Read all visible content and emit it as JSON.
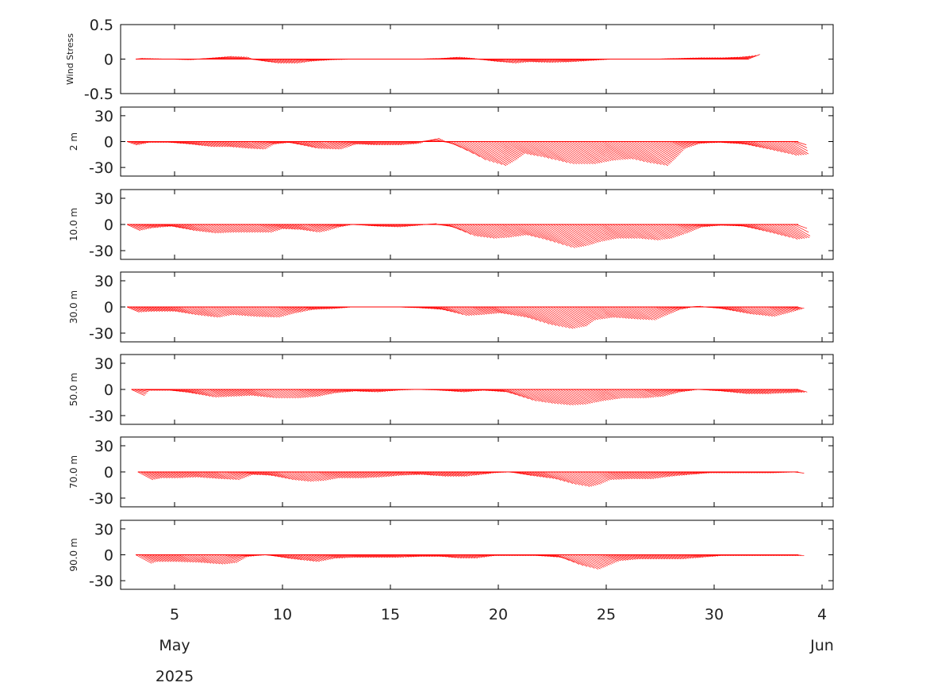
{
  "chart_data": {
    "type": "line",
    "description_style": "stick vector plots",
    "line_color": "#ff0000",
    "x_axis": {
      "ticks": [
        "5",
        "10",
        "15",
        "20",
        "25",
        "30",
        "4"
      ],
      "month_labels": [
        "May",
        "Jun"
      ],
      "year_label": "2025",
      "xlim": [
        "2025-05-02.5",
        "2025-06-04.5"
      ]
    },
    "panels": [
      {
        "ylabel": "Wind Stress",
        "ylim": [
          -0.5,
          0.5
        ],
        "yticks": [
          "0.5",
          "0",
          "-0.5"
        ],
        "series": [
          {
            "x": [
              3.2,
              4.5,
              5.5,
              6.5,
              7.2,
              8.0,
              8.6,
              9.3,
              10.2,
              11.0,
              12.0,
              13.0,
              14.0,
              15.0,
              16.0,
              17.0,
              17.8,
              18.6,
              19.4,
              20.3,
              21.0,
              22.0,
              23.0,
              24.0,
              25.0,
              26.0,
              27.0,
              28.0,
              29.0,
              30.0,
              30.8,
              31.4,
              31.6
            ],
            "y": [
              0.01,
              0.0,
              -0.01,
              0.02,
              0.04,
              0.03,
              -0.02,
              -0.06,
              -0.06,
              -0.03,
              -0.01,
              0.0,
              0.0,
              0.0,
              0.0,
              0.01,
              0.03,
              0.01,
              -0.03,
              -0.06,
              -0.04,
              -0.05,
              -0.04,
              -0.02,
              0.0,
              0.0,
              0.0,
              0.01,
              0.02,
              0.02,
              0.03,
              0.05,
              0.07
            ]
          }
        ]
      },
      {
        "ylabel": "2 m",
        "ylim": [
          -40,
          40
        ],
        "yticks": [
          "30",
          "0",
          "-30"
        ],
        "series": [
          {
            "x": [
              2.8,
              3.5,
              4.5,
              5.3,
              6.2,
              7.0,
              7.8,
              8.5,
              9.2,
              10.0,
              11.0,
              12.0,
              13.0,
              14.0,
              15.0,
              16.0,
              16.8,
              17.5,
              18.2,
              18.8,
              19.5,
              20.3,
              21.0,
              22.0,
              23.0,
              24.0,
              25.0,
              25.5,
              26.3,
              27.0,
              28.0,
              29.0,
              30.0,
              31.0,
              32.0,
              32.8,
              33.4,
              33.9
            ],
            "y": [
              -4,
              -1,
              -1,
              -3,
              -6,
              -6,
              -8,
              -9,
              -3,
              -1,
              -8,
              -9,
              -3,
              -4,
              -4,
              -2,
              4,
              -2,
              -22,
              -28,
              -22,
              -14,
              -18,
              -26,
              -26,
              -22,
              -20,
              -24,
              -28,
              -20,
              -8,
              -2,
              -1,
              -3,
              -10,
              -16,
              -15,
              -1
            ]
          }
        ]
      },
      {
        "ylabel": "10.0 m",
        "ylim": [
          -40,
          40
        ],
        "yticks": [
          "30",
          "0",
          "-30"
        ],
        "series": [
          {
            "x": [
              2.8,
              3.5,
              4.5,
              5.3,
              6.2,
              7.0,
              8.0,
              8.8,
              9.5,
              10.3,
              11.0,
              11.5,
              12.2,
              13.0,
              14.0,
              15.0,
              16.0,
              16.8,
              17.5,
              18.0,
              18.8,
              19.5,
              20.5,
              21.2,
              22.0,
              22.8,
              23.5,
              24.5,
              25.5,
              26.3,
              27.0,
              28.0,
              29.0,
              30.0,
              31.0,
              32.0,
              32.8,
              33.5,
              33.9
            ],
            "y": [
              -7,
              -4,
              -2,
              -7,
              -10,
              -9,
              -9,
              -9,
              -5,
              -6,
              -9,
              -7,
              -3,
              0,
              -2,
              -3,
              -1,
              1,
              -3,
              -13,
              -16,
              -15,
              -12,
              -18,
              -27,
              -24,
              -20,
              -16,
              -16,
              -18,
              -16,
              -10,
              -3,
              -1,
              -2,
              -10,
              -17,
              -15,
              -1
            ]
          }
        ]
      },
      {
        "ylabel": "30.0 m",
        "ylim": [
          -40,
          40
        ],
        "yticks": [
          "30",
          "0",
          "-30"
        ],
        "series": [
          {
            "x": [
              2.8,
              3.5,
              4.5,
              5.3,
              6.2,
              7.0,
              8.0,
              9.0,
              10.0,
              11.0,
              12.0,
              13.0,
              14.0,
              15.0,
              16.0,
              17.0,
              17.8,
              18.5,
              19.5,
              20.5,
              21.2,
              22.0,
              22.8,
              23.5,
              24.5,
              25.5,
              26.3,
              27.0,
              28.0,
              29.0,
              30.0,
              31.0,
              32.0,
              33.0,
              33.9
            ],
            "y": [
              -6,
              -5,
              -5,
              -9,
              -12,
              -9,
              -11,
              -12,
              -7,
              -3,
              -2,
              0,
              0,
              0,
              -1,
              -3,
              -10,
              -9,
              -7,
              -12,
              -20,
              -25,
              -22,
              -15,
              -12,
              -14,
              -15,
              -10,
              -3,
              1,
              -2,
              -8,
              -11,
              -6,
              -1
            ]
          }
        ]
      },
      {
        "ylabel": "50.0 m",
        "ylim": [
          -40,
          40
        ],
        "yticks": [
          "30",
          "0",
          "-30"
        ],
        "series": [
          {
            "x": [
              3.0,
              3.5,
              4.5,
              5.3,
              6.2,
              7.0,
              8.0,
              9.0,
              10.0,
              11.0,
              12.0,
              13.0,
              14.0,
              15.0,
              16.0,
              17.0,
              18.0,
              19.0,
              20.0,
              20.8,
              21.5,
              22.3,
              23.0,
              24.0,
              25.0,
              26.0,
              27.0,
              28.0,
              29.0,
              30.0,
              31.0,
              32.0,
              33.0,
              33.9
            ],
            "y": [
              -7,
              -1,
              -1,
              -4,
              -9,
              -8,
              -7,
              -10,
              -10,
              -8,
              -4,
              -2,
              -3,
              -1,
              0,
              -1,
              -3,
              -1,
              -3,
              -13,
              -16,
              -18,
              -17,
              -13,
              -10,
              -10,
              -8,
              -3,
              0,
              -2,
              -5,
              -5,
              -4,
              -3
            ]
          }
        ]
      },
      {
        "ylabel": "70.0 m",
        "ylim": [
          -40,
          40
        ],
        "yticks": [
          "30",
          "0",
          "-30"
        ],
        "series": [
          {
            "x": [
              3.3,
              3.8,
              4.5,
              5.5,
              6.5,
              7.3,
              8.2,
              9.0,
              9.8,
              10.5,
              11.2,
              12.0,
              13.0,
              14.0,
              15.0,
              16.0,
              17.0,
              18.0,
              18.8,
              19.5,
              20.3,
              21.0,
              22.0,
              22.6,
              23.2,
              23.8,
              24.5,
              25.5,
              26.5,
              27.5,
              28.5,
              29.5,
              30.5,
              31.5,
              32.5,
              33.5,
              33.9
            ],
            "y": [
              -9,
              -7,
              -7,
              -6,
              -8,
              -9,
              -3,
              -4,
              -9,
              -11,
              -10,
              -7,
              -7,
              -6,
              -4,
              -3,
              -5,
              -5,
              -3,
              -1,
              0,
              -4,
              -8,
              -14,
              -17,
              -14,
              -9,
              -8,
              -8,
              -5,
              -3,
              -1,
              -1,
              -1,
              -1,
              0,
              -2
            ]
          }
        ]
      },
      {
        "ylabel": "90.0 m",
        "ylim": [
          -40,
          40
        ],
        "yticks": [
          "30",
          "0",
          "-30"
        ],
        "series": [
          {
            "x": [
              3.2,
              3.5,
              4.5,
              5.5,
              6.5,
              7.2,
              8.0,
              9.0,
              10.0,
              11.0,
              12.0,
              13.0,
              14.0,
              15.0,
              16.0,
              17.0,
              17.8,
              18.5,
              19.5,
              20.5,
              21.5,
              22.5,
              23.0,
              23.6,
              24.3,
              25.0,
              26.0,
              27.0,
              28.0,
              29.0,
              30.0,
              31.0,
              32.0,
              33.0,
              33.9
            ],
            "y": [
              -10,
              -8,
              -8,
              -9,
              -11,
              -9,
              -2,
              0,
              -5,
              -8,
              -4,
              -3,
              -3,
              -3,
              -2,
              -2,
              -4,
              -4,
              -1,
              -1,
              -1,
              -3,
              -12,
              -17,
              -12,
              -7,
              -5,
              -5,
              -5,
              -3,
              -1,
              -1,
              -1,
              -1,
              -1
            ]
          }
        ]
      }
    ]
  }
}
